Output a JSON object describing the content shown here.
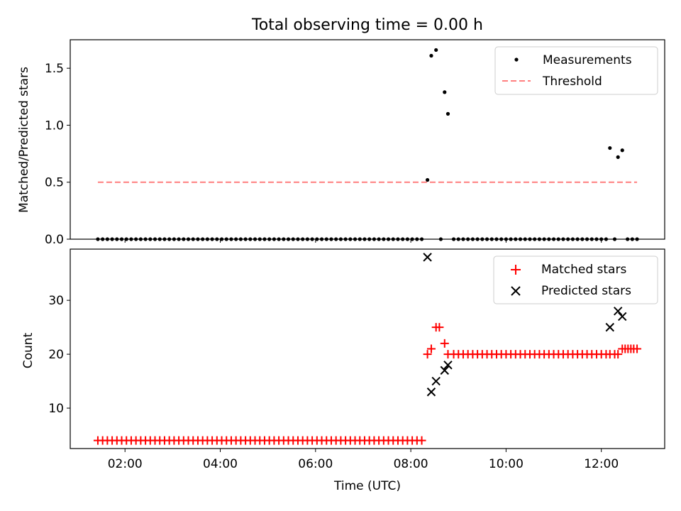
{
  "title": "Total observing time = 0.00 h",
  "chart_data": [
    {
      "type": "scatter",
      "ylabel": "Matched/Predicted stars",
      "xlabel": "",
      "ylim": [
        0,
        1.75
      ],
      "yticks": [
        0.0,
        0.5,
        1.0,
        1.5
      ],
      "yticklabels": [
        "0.0",
        "0.5",
        "1.0",
        "1.5"
      ],
      "legend_position": "upper right",
      "legend": [
        "Measurements",
        "Threshold"
      ],
      "series": [
        {
          "name": "Measurements",
          "marker": "dot",
          "color": "#000000",
          "x": [
            1.43,
            1.53,
            1.63,
            1.73,
            1.83,
            1.93,
            2.03,
            2.13,
            2.23,
            2.33,
            2.43,
            2.53,
            2.63,
            2.73,
            2.83,
            2.93,
            3.03,
            3.13,
            3.23,
            3.33,
            3.43,
            3.53,
            3.63,
            3.73,
            3.83,
            3.93,
            4.03,
            4.13,
            4.23,
            4.33,
            4.43,
            4.53,
            4.63,
            4.73,
            4.83,
            4.93,
            5.03,
            5.13,
            5.23,
            5.33,
            5.43,
            5.53,
            5.63,
            5.73,
            5.83,
            5.93,
            6.03,
            6.13,
            6.23,
            6.33,
            6.43,
            6.53,
            6.63,
            6.73,
            6.83,
            6.93,
            7.03,
            7.13,
            7.23,
            7.33,
            7.43,
            7.53,
            7.63,
            7.73,
            7.83,
            7.93,
            8.03,
            8.13,
            8.23,
            8.35,
            8.43,
            8.53,
            8.63,
            8.71,
            8.78,
            8.9,
            9.0,
            9.1,
            9.2,
            9.3,
            9.4,
            9.5,
            9.6,
            9.7,
            9.8,
            9.9,
            10.0,
            10.1,
            10.2,
            10.3,
            10.4,
            10.5,
            10.6,
            10.7,
            10.8,
            10.9,
            11.0,
            11.1,
            11.2,
            11.3,
            11.4,
            11.5,
            11.6,
            11.7,
            11.8,
            11.9,
            12.0,
            12.1,
            12.18,
            12.28,
            12.35,
            12.44,
            12.55,
            12.65,
            12.75
          ],
          "y": [
            0,
            0,
            0,
            0,
            0,
            0,
            0,
            0,
            0,
            0,
            0,
            0,
            0,
            0,
            0,
            0,
            0,
            0,
            0,
            0,
            0,
            0,
            0,
            0,
            0,
            0,
            0,
            0,
            0,
            0,
            0,
            0,
            0,
            0,
            0,
            0,
            0,
            0,
            0,
            0,
            0,
            0,
            0,
            0,
            0,
            0,
            0,
            0,
            0,
            0,
            0,
            0,
            0,
            0,
            0,
            0,
            0,
            0,
            0,
            0,
            0,
            0,
            0,
            0,
            0,
            0,
            0,
            0,
            0,
            0.52,
            1.61,
            1.66,
            0,
            1.29,
            1.1,
            0,
            0,
            0,
            0,
            0,
            0,
            0,
            0,
            0,
            0,
            0,
            0,
            0,
            0,
            0,
            0,
            0,
            0,
            0,
            0,
            0,
            0,
            0,
            0,
            0,
            0,
            0,
            0,
            0,
            0,
            0,
            0,
            0,
            0.8,
            0,
            0.72,
            0.78,
            0,
            0,
            0
          ]
        },
        {
          "name": "Threshold",
          "style": "dashed",
          "color": "#ff7f7f",
          "x": [
            1.43,
            12.75
          ],
          "y": [
            0.5,
            0.5
          ]
        }
      ]
    },
    {
      "type": "scatter",
      "ylabel": "Count",
      "xlabel": "Time (UTC)",
      "xlim": [
        0.85,
        13.33
      ],
      "ylim": [
        2.5,
        39.5
      ],
      "xticks": [
        2,
        4,
        6,
        8,
        10,
        12
      ],
      "xticklabels": [
        "02:00",
        "04:00",
        "06:00",
        "08:00",
        "10:00",
        "12:00"
      ],
      "yticks": [
        10,
        20,
        30
      ],
      "yticklabels": [
        "10",
        "20",
        "30"
      ],
      "legend_position": "upper right",
      "legend": [
        "Matched stars",
        "Predicted stars"
      ],
      "series": [
        {
          "name": "Matched stars",
          "marker": "plus",
          "color": "#ff0000",
          "x": [
            1.43,
            1.53,
            1.63,
            1.73,
            1.83,
            1.93,
            2.03,
            2.13,
            2.23,
            2.33,
            2.43,
            2.53,
            2.63,
            2.73,
            2.83,
            2.93,
            3.03,
            3.13,
            3.23,
            3.33,
            3.43,
            3.53,
            3.63,
            3.73,
            3.83,
            3.93,
            4.03,
            4.13,
            4.23,
            4.33,
            4.43,
            4.53,
            4.63,
            4.73,
            4.83,
            4.93,
            5.03,
            5.13,
            5.23,
            5.33,
            5.43,
            5.53,
            5.63,
            5.73,
            5.83,
            5.93,
            6.03,
            6.13,
            6.23,
            6.33,
            6.43,
            6.53,
            6.63,
            6.73,
            6.83,
            6.93,
            7.03,
            7.13,
            7.23,
            7.33,
            7.43,
            7.53,
            7.63,
            7.73,
            7.83,
            7.93,
            8.03,
            8.13,
            8.23,
            8.35,
            8.43,
            8.53,
            8.6,
            8.71,
            8.78,
            8.9,
            9.0,
            9.1,
            9.2,
            9.3,
            9.4,
            9.5,
            9.6,
            9.7,
            9.8,
            9.9,
            10.0,
            10.1,
            10.2,
            10.3,
            10.4,
            10.5,
            10.6,
            10.7,
            10.8,
            10.9,
            11.0,
            11.1,
            11.2,
            11.3,
            11.4,
            11.5,
            11.6,
            11.7,
            11.8,
            11.9,
            12.0,
            12.1,
            12.18,
            12.28,
            12.35,
            12.44,
            12.5,
            12.56,
            12.62,
            12.68,
            12.75
          ],
          "y": [
            4,
            4,
            4,
            4,
            4,
            4,
            4,
            4,
            4,
            4,
            4,
            4,
            4,
            4,
            4,
            4,
            4,
            4,
            4,
            4,
            4,
            4,
            4,
            4,
            4,
            4,
            4,
            4,
            4,
            4,
            4,
            4,
            4,
            4,
            4,
            4,
            4,
            4,
            4,
            4,
            4,
            4,
            4,
            4,
            4,
            4,
            4,
            4,
            4,
            4,
            4,
            4,
            4,
            4,
            4,
            4,
            4,
            4,
            4,
            4,
            4,
            4,
            4,
            4,
            4,
            4,
            4,
            4,
            4,
            20,
            21,
            25,
            25,
            22,
            20,
            20,
            20,
            20,
            20,
            20,
            20,
            20,
            20,
            20,
            20,
            20,
            20,
            20,
            20,
            20,
            20,
            20,
            20,
            20,
            20,
            20,
            20,
            20,
            20,
            20,
            20,
            20,
            20,
            20,
            20,
            20,
            20,
            20,
            20,
            20,
            20,
            21,
            21,
            21,
            21,
            21,
            21
          ]
        },
        {
          "name": "Predicted stars",
          "marker": "x",
          "color": "#000000",
          "x": [
            8.35,
            8.43,
            8.53,
            8.71,
            8.78,
            12.18,
            12.35,
            12.44
          ],
          "y": [
            38,
            13,
            15,
            17,
            18,
            25,
            28,
            27
          ]
        }
      ]
    }
  ]
}
